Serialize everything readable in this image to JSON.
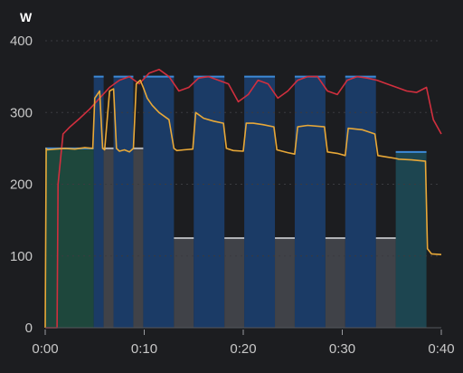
{
  "chart_data": {
    "type": "line",
    "unit_label": "W",
    "ylim": [
      0,
      400
    ],
    "xlim_minutes": [
      0,
      40
    ],
    "y_ticks": [
      {
        "value": 0,
        "label": "0"
      },
      {
        "value": 100,
        "label": "100"
      },
      {
        "value": 200,
        "label": "200"
      },
      {
        "value": 300,
        "label": "300"
      },
      {
        "value": 400,
        "label": "400"
      }
    ],
    "x_ticks": [
      {
        "value": 0,
        "label": "0:00"
      },
      {
        "value": 10,
        "label": "0:10"
      },
      {
        "value": 20,
        "label": "0:20"
      },
      {
        "value": 30,
        "label": "0:30"
      },
      {
        "value": 40,
        "label": "0:40"
      }
    ],
    "grid": true,
    "interval_blocks": [
      {
        "start": 0,
        "end": 4.9,
        "target": 250,
        "zone": "endurance",
        "color": "#1f4d3f"
      },
      {
        "start": 4.9,
        "end": 5.9,
        "target": 350,
        "zone": "threshold",
        "color": "#1c3f6e"
      },
      {
        "start": 5.9,
        "end": 6.9,
        "target": 250,
        "zone": "recovery",
        "color": "#45474c"
      },
      {
        "start": 6.9,
        "end": 8.9,
        "target": 350,
        "zone": "threshold",
        "color": "#1c3f6e"
      },
      {
        "start": 8.9,
        "end": 9.9,
        "target": 250,
        "zone": "recovery",
        "color": "#45474c"
      },
      {
        "start": 9.9,
        "end": 13.0,
        "target": 350,
        "zone": "threshold",
        "color": "#1c3f6e"
      },
      {
        "start": 13.0,
        "end": 15.0,
        "target": 125,
        "zone": "recovery",
        "color": "#45474c"
      },
      {
        "start": 15.0,
        "end": 18.1,
        "target": 350,
        "zone": "threshold",
        "color": "#1c3f6e"
      },
      {
        "start": 18.1,
        "end": 20.1,
        "target": 125,
        "zone": "recovery",
        "color": "#45474c"
      },
      {
        "start": 20.1,
        "end": 23.2,
        "target": 350,
        "zone": "threshold",
        "color": "#1c3f6e"
      },
      {
        "start": 23.2,
        "end": 25.2,
        "target": 125,
        "zone": "recovery",
        "color": "#45474c"
      },
      {
        "start": 25.2,
        "end": 28.3,
        "target": 350,
        "zone": "threshold",
        "color": "#1c3f6e"
      },
      {
        "start": 28.3,
        "end": 30.3,
        "target": 125,
        "zone": "recovery",
        "color": "#45474c"
      },
      {
        "start": 30.3,
        "end": 33.4,
        "target": 350,
        "zone": "threshold",
        "color": "#1c3f6e"
      },
      {
        "start": 33.4,
        "end": 35.4,
        "target": 125,
        "zone": "recovery",
        "color": "#45474c"
      },
      {
        "start": 35.4,
        "end": 38.5,
        "target": 245,
        "zone": "endurance",
        "color": "#1e4a55"
      }
    ],
    "series": [
      {
        "color": "#e8a838",
        "x": [
          0,
          0.1,
          0.2,
          1,
          2,
          3,
          4,
          4.8,
          5.0,
          5.5,
          5.8,
          6.0,
          6.5,
          6.9,
          7.2,
          7.5,
          8,
          8.5,
          8.9,
          9.2,
          9.6,
          9.9,
          10.3,
          10.8,
          11.5,
          12.5,
          13.0,
          13.3,
          14.0,
          14.9,
          15.2,
          16,
          17,
          18.0,
          18.3,
          19.0,
          20.0,
          20.3,
          21,
          22,
          23.1,
          23.4,
          24.5,
          25.2,
          25.5,
          26.5,
          28.2,
          28.5,
          29.5,
          30.3,
          30.6,
          32,
          33.3,
          33.6,
          34.5,
          35.4,
          35.7,
          37,
          38.4,
          38.6,
          39,
          40
        ],
        "y": [
          0,
          250,
          248,
          249,
          250,
          249,
          251,
          250,
          320,
          330,
          250,
          248,
          330,
          333,
          250,
          246,
          248,
          245,
          250,
          340,
          345,
          335,
          320,
          310,
          300,
          290,
          250,
          247,
          248,
          249,
          300,
          292,
          288,
          285,
          250,
          247,
          246,
          285,
          285,
          283,
          280,
          248,
          244,
          242,
          280,
          282,
          280,
          245,
          243,
          240,
          278,
          276,
          270,
          240,
          238,
          236,
          235,
          234,
          232,
          110,
          103,
          102
        ]
      },
      {
        "color": "#d12f3e",
        "x": [
          0,
          0.8,
          1.2,
          1.3,
          1.8,
          2.5,
          3.5,
          4.5,
          5.5,
          6.5,
          7.5,
          8.5,
          9.5,
          10.5,
          11.5,
          12.5,
          13.5,
          14.5,
          15.5,
          16.5,
          17.5,
          18.5,
          19.5,
          20.5,
          21.5,
          22.5,
          23.5,
          24.5,
          25.5,
          26.5,
          27.5,
          28.5,
          29.5,
          30.5,
          31.5,
          32.5,
          33.5,
          34.5,
          35.5,
          36.5,
          37.5,
          38.5,
          39.2,
          40
        ],
        "y": [
          0,
          0,
          0,
          200,
          270,
          280,
          292,
          305,
          320,
          335,
          345,
          350,
          340,
          355,
          360,
          350,
          330,
          335,
          348,
          350,
          345,
          340,
          315,
          325,
          345,
          340,
          320,
          330,
          345,
          350,
          350,
          330,
          325,
          345,
          350,
          348,
          345,
          340,
          335,
          330,
          328,
          335,
          290,
          270
        ]
      }
    ]
  }
}
